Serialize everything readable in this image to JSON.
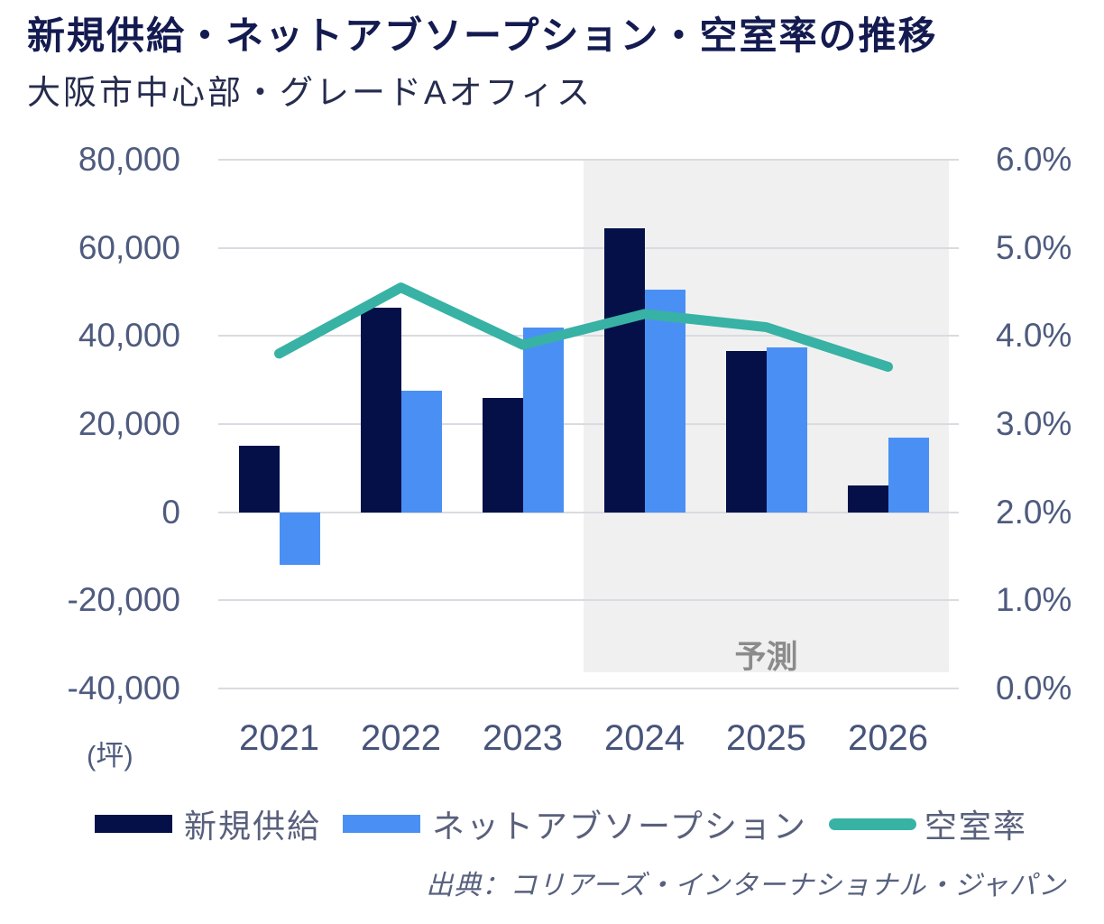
{
  "header": {
    "title": "新規供給・ネットアブソープション・空室率の推移",
    "subtitle": "大阪市中心部・グレードAオフィス"
  },
  "chart_data": {
    "type": "combo",
    "categories": [
      "2021",
      "2022",
      "2023",
      "2024",
      "2025",
      "2026"
    ],
    "series": [
      {
        "name": "新規供給",
        "type": "bar",
        "axis": "left",
        "color": "#051049",
        "values": [
          15000,
          46500,
          26000,
          64500,
          36500,
          6000
        ]
      },
      {
        "name": "ネットアブソープション",
        "type": "bar",
        "axis": "left",
        "color": "#4a90f4",
        "values": [
          -12000,
          27500,
          42000,
          50500,
          37500,
          17000
        ]
      },
      {
        "name": "空室率",
        "type": "line",
        "axis": "right",
        "color": "#38b2a4",
        "values": [
          3.8,
          4.55,
          3.9,
          4.25,
          4.1,
          3.65
        ]
      }
    ],
    "left_axis": {
      "unit": "(坪)",
      "min": -40000,
      "max": 80000,
      "tick_labels": [
        "80,000",
        "60,000",
        "40,000",
        "20,000",
        "0",
        "-20,000",
        "-40,000"
      ]
    },
    "right_axis": {
      "min": 0,
      "max": 6,
      "tick_labels": [
        "6.0%",
        "5.0%",
        "4.0%",
        "3.0%",
        "2.0%",
        "1.0%",
        "0.0%"
      ]
    },
    "forecast": {
      "label": "予測",
      "from_category": "2024",
      "background": "#f0f0f0"
    },
    "grid": true,
    "legend_position": "bottom"
  },
  "legend": {
    "items": [
      {
        "label": "新規供給",
        "marker": "bar-swatch",
        "color": "#051049"
      },
      {
        "label": "ネットアブソープション",
        "marker": "bar-swatch",
        "color": "#4a90f4"
      },
      {
        "label": "空室率",
        "marker": "line-swatch",
        "color": "#38b2a4"
      }
    ]
  },
  "source": "出典：コリアーズ・インターナショナル・ジャパン",
  "colors": {
    "grid": "#d9dbe0",
    "axis_text": "#4e5b7e",
    "x_axis_text": "#47547a",
    "title_text": "#141b50",
    "subtitle_text": "#262c4e",
    "forecast_label_text": "#8b8b8b",
    "legend_text": "#59607c",
    "source_text": "#57617e"
  }
}
